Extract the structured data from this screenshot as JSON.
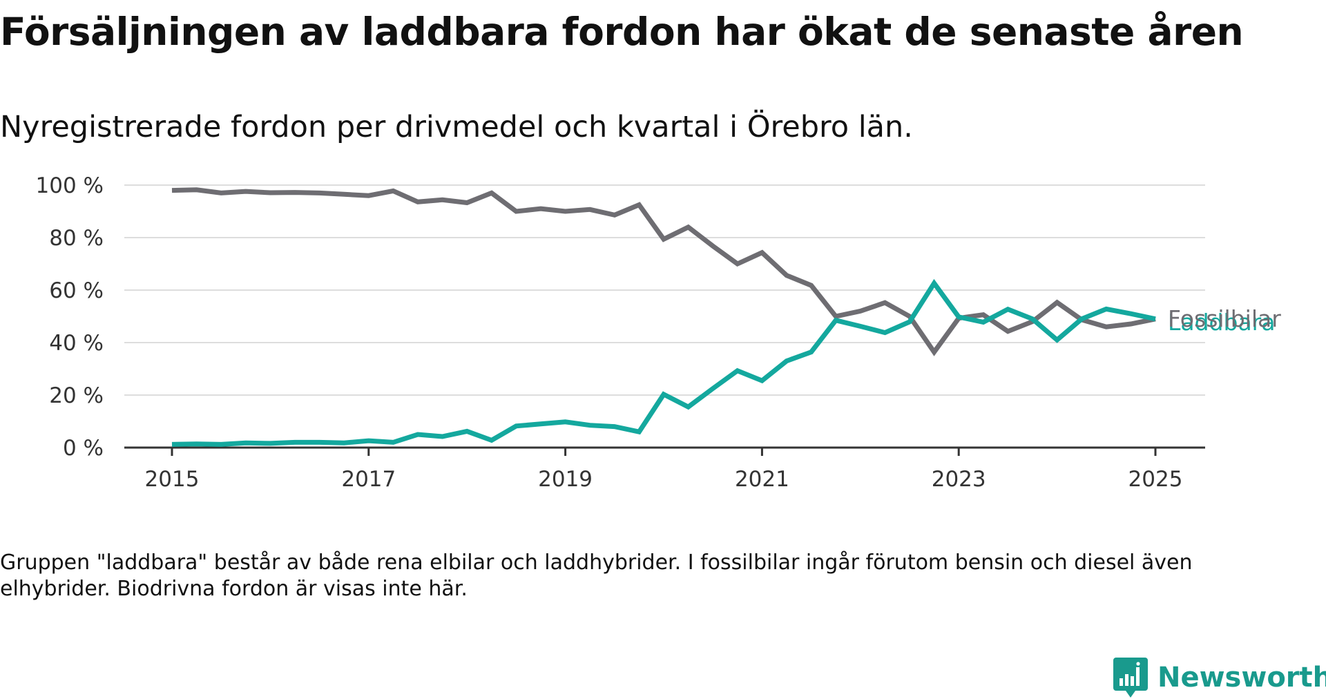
{
  "title": "Försäljningen av laddbara fordon har ökat de senaste åren",
  "subtitle": "Nyregistrerade fordon per drivmedel och kvartal i Örebro län.",
  "note": "Gruppen \"laddbara\" består av både rena elbilar och laddhybrider. I fossilbilar ingår förutom bensin och diesel även elhybrider. Biodrivna fordon är visas inte här.",
  "logo": {
    "text": "Newsworthy",
    "icon": "bar-chart-speech-bubble-icon",
    "color": "#199a8d"
  },
  "chart_data": {
    "type": "line",
    "ylim": [
      0,
      100
    ],
    "xlim": [
      2015,
      2025.5
    ],
    "x_ticks": [
      2015,
      2017,
      2019,
      2021,
      2023,
      2025
    ],
    "x_tick_labels": [
      "2015",
      "2017",
      "2019",
      "2021",
      "2023",
      "2025"
    ],
    "y_ticks": [
      0,
      20,
      40,
      60,
      80,
      100
    ],
    "y_tick_labels": [
      "0 %",
      "20 %",
      "40 %",
      "60 %",
      "80 %",
      "100 %"
    ],
    "grid": true,
    "x": [
      2015.0,
      2015.25,
      2015.5,
      2015.75,
      2016.0,
      2016.25,
      2016.5,
      2016.75,
      2017.0,
      2017.25,
      2017.5,
      2017.75,
      2018.0,
      2018.25,
      2018.5,
      2018.75,
      2019.0,
      2019.25,
      2019.5,
      2019.75,
      2020.0,
      2020.25,
      2020.5,
      2020.75,
      2021.0,
      2021.25,
      2021.5,
      2021.75,
      2022.0,
      2022.25,
      2022.5,
      2022.75,
      2023.0,
      2023.25,
      2023.5,
      2023.75,
      2024.0,
      2024.25,
      2024.5,
      2024.75,
      2025.0
    ],
    "series": [
      {
        "name": "Fossilbilar",
        "color": "#6e6d72",
        "values": [
          98.0,
          98.2,
          97.0,
          97.6,
          97.1,
          97.2,
          97.0,
          96.5,
          96.0,
          97.8,
          93.6,
          94.4,
          93.3,
          97.0,
          90.0,
          91.0,
          90.0,
          90.7,
          88.6,
          92.5,
          79.4,
          84.0,
          76.8,
          70.0,
          74.3,
          65.6,
          61.8,
          50.0,
          52.0,
          55.2,
          50.0,
          36.4,
          49.3,
          50.6,
          44.3,
          48.0,
          55.3,
          48.7,
          46.0,
          47.1,
          49.0
        ]
      },
      {
        "name": "Laddbara",
        "color": "#14a89e",
        "values": [
          1.2,
          1.4,
          1.2,
          1.8,
          1.6,
          2.0,
          2.0,
          1.8,
          2.6,
          2.0,
          5.0,
          4.2,
          6.2,
          2.8,
          8.2,
          9.0,
          9.8,
          8.5,
          8.0,
          6.0,
          20.3,
          15.5,
          22.5,
          29.3,
          25.5,
          33.0,
          36.4,
          48.5,
          46.2,
          43.8,
          47.9,
          62.6,
          49.8,
          47.8,
          52.7,
          49.0,
          41.0,
          49.0,
          52.8,
          51.0,
          49.0
        ]
      }
    ]
  }
}
